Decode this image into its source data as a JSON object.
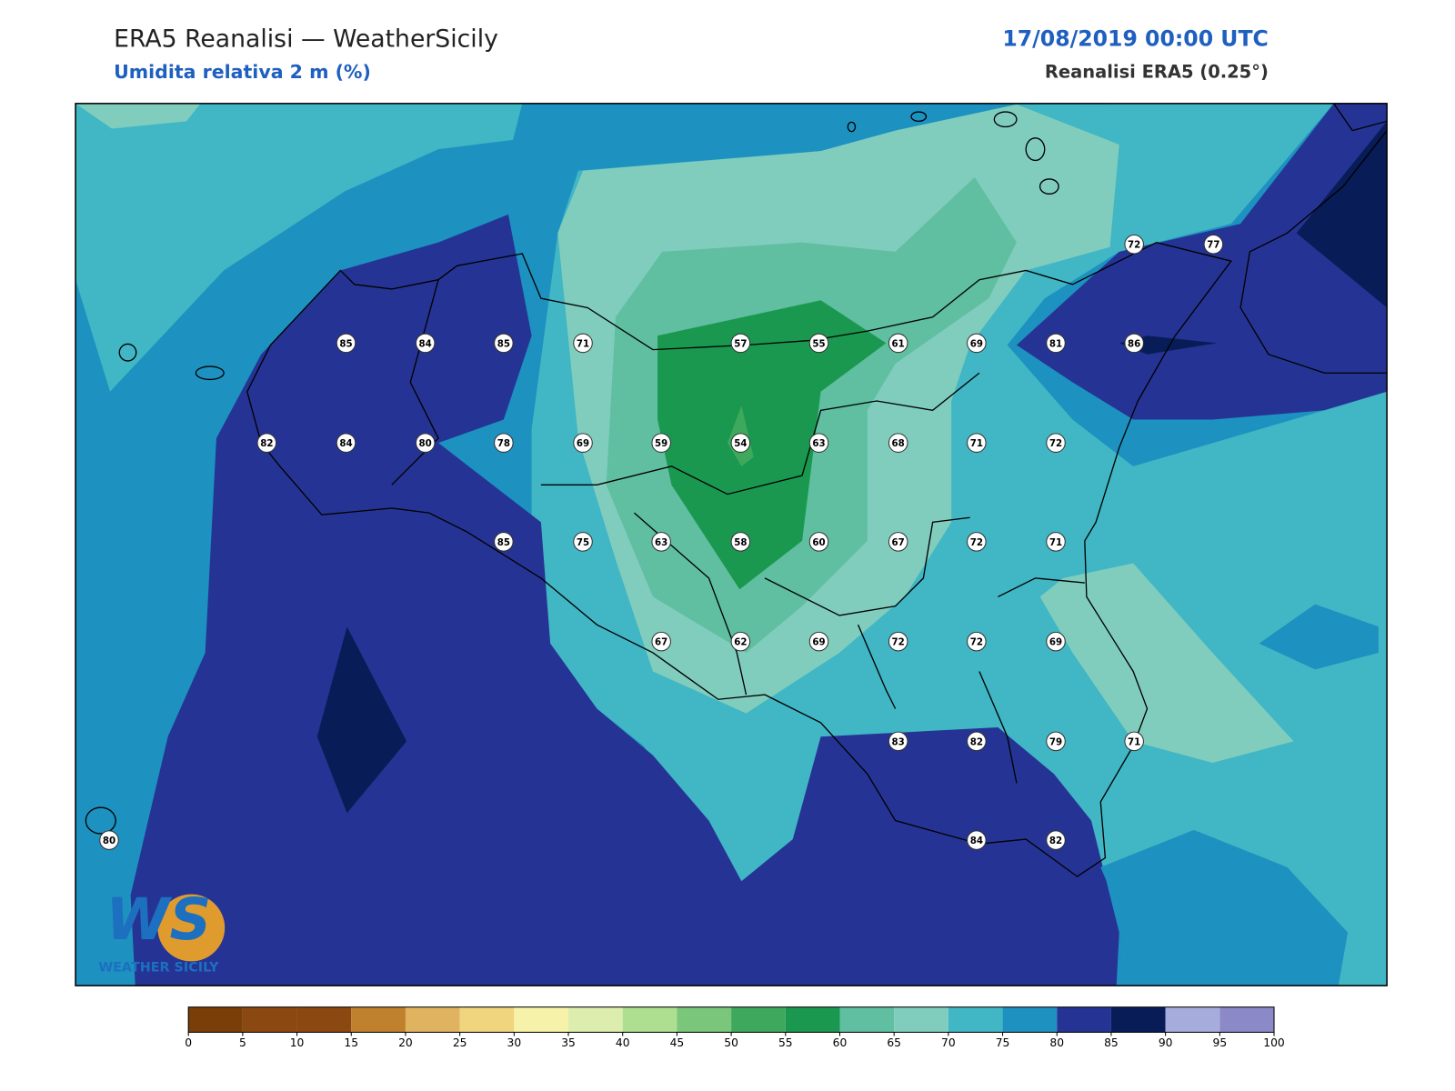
{
  "header": {
    "title": "ERA5 Reanalisi — WeatherSicily",
    "subtitle": "Umidita relativa 2 m (%)",
    "date": "17/08/2019 00:00 UTC",
    "source": "Reanalisi ERA5 (0.25°)"
  },
  "stations": [
    85,
    84,
    85,
    71,
    57,
    55,
    61,
    69,
    81,
    86,
    72,
    77,
    82,
    84,
    80,
    78,
    69,
    59,
    54,
    63,
    68,
    71,
    72,
    85,
    75,
    63,
    58,
    60,
    67,
    72,
    71,
    67,
    62,
    69,
    72,
    72,
    69,
    83,
    82,
    79,
    71,
    80,
    84,
    82
  ],
  "logo": {
    "mark": "WS",
    "text": "WEATHER SICILY"
  },
  "colorbar": {
    "ticks": [
      0,
      5,
      10,
      15,
      20,
      25,
      30,
      35,
      40,
      45,
      50,
      55,
      60,
      65,
      70,
      75,
      80,
      85,
      90,
      95,
      100
    ],
    "colors": [
      "#7a3e08",
      "#8b4810",
      "#8b4810",
      "#bf812d",
      "#dfb35f",
      "#f0d47e",
      "#f6f2a9",
      "#dcedae",
      "#aedf90",
      "#7ac67a",
      "#3ea95c",
      "#1a9850",
      "#5fbfa0",
      "#80cdbe",
      "#41b6c4",
      "#1d91c0",
      "#253494",
      "#081d58",
      "#a6acdc",
      "#8b89c8"
    ]
  }
}
